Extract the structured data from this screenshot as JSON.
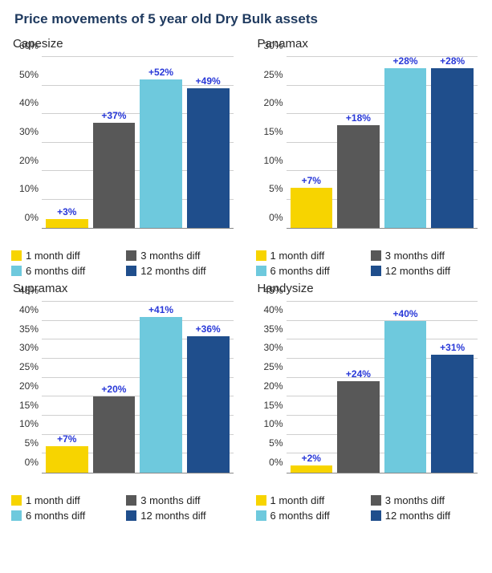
{
  "title": "Price movements of 5 year old Dry Bulk assets",
  "series_colors": [
    "#f7d400",
    "#585858",
    "#6ec9dd",
    "#1f4e8c"
  ],
  "grid_color": "#cfcfcf",
  "axis_color": "#888888",
  "label_color": "#2838d8",
  "legend_labels": [
    "1 month diff",
    "3 months diff",
    "6 months diff",
    "12 months diff"
  ],
  "panels": [
    {
      "key": "capesize",
      "title": "Capesize",
      "ymax": 60,
      "ytick_step": 10,
      "values": [
        3,
        37,
        52,
        49
      ],
      "value_labels": [
        "+3%",
        "+37%",
        "+52%",
        "+49%"
      ]
    },
    {
      "key": "panamax",
      "title": "Panamax",
      "ymax": 30,
      "ytick_step": 5,
      "values": [
        7,
        18,
        28,
        28
      ],
      "value_labels": [
        "+7%",
        "+18%",
        "+28%",
        "+28%"
      ]
    },
    {
      "key": "supramax",
      "title": "Supramax",
      "ymax": 45,
      "ytick_step": 5,
      "values": [
        7,
        20,
        41,
        36
      ],
      "value_labels": [
        "+7%",
        "+20%",
        "+41%",
        "+36%"
      ]
    },
    {
      "key": "handysize",
      "title": "Handysize",
      "ymax": 45,
      "ytick_step": 5,
      "values": [
        2,
        24,
        40,
        31
      ],
      "value_labels": [
        "+2%",
        "+24%",
        "+40%",
        "+31%"
      ]
    }
  ]
}
